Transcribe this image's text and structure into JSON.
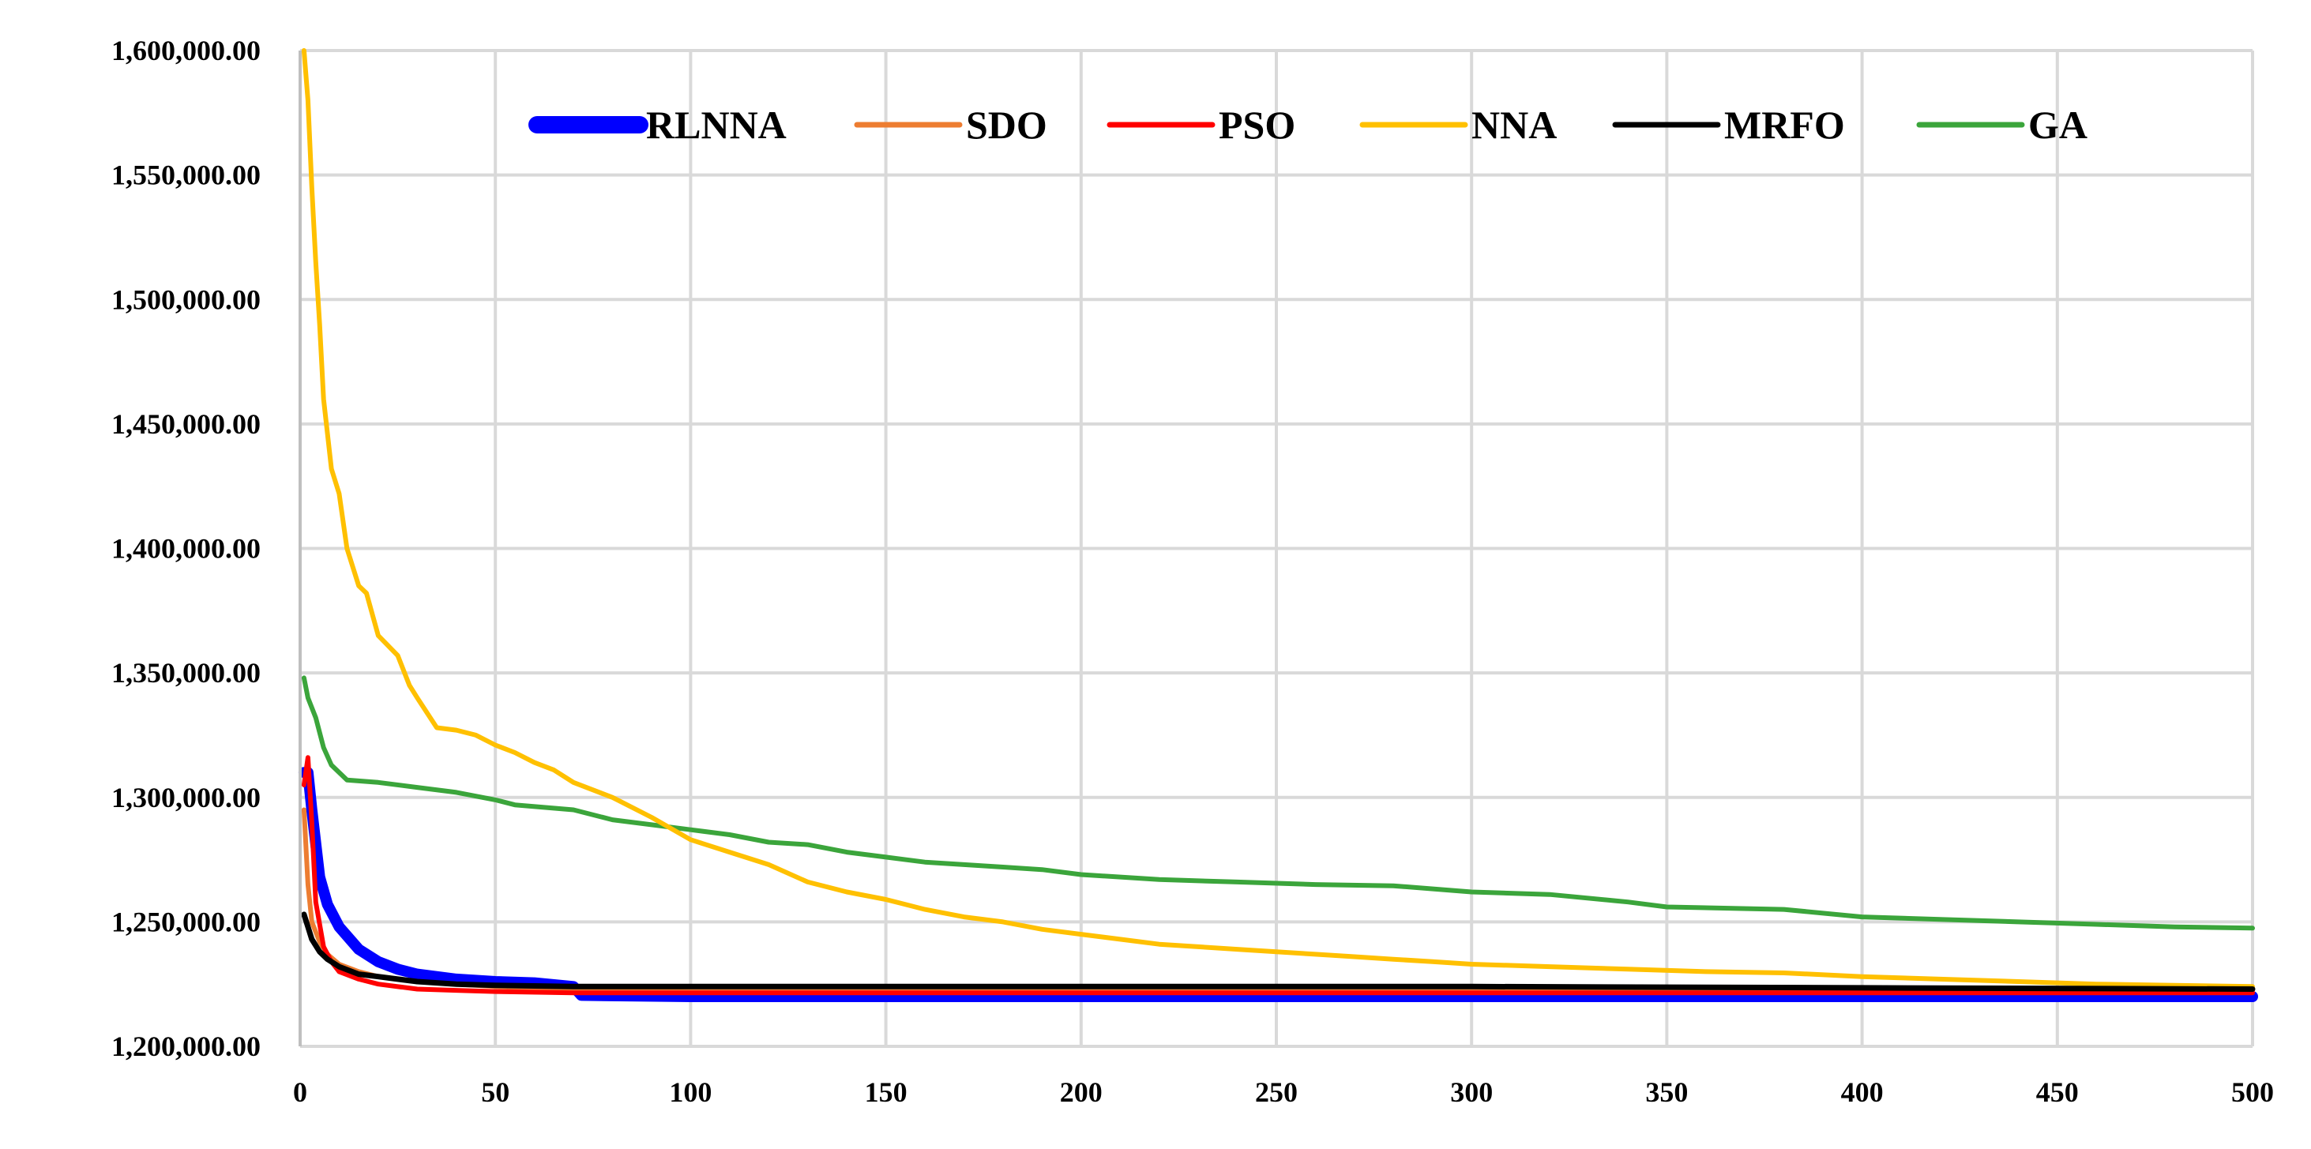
{
  "chart_data": {
    "type": "line",
    "title": "",
    "xlabel": "",
    "ylabel": "",
    "xlim": [
      0,
      500
    ],
    "ylim": [
      1200000,
      1600000
    ],
    "x_ticks": [
      0,
      50,
      100,
      150,
      200,
      250,
      300,
      350,
      400,
      450,
      500
    ],
    "x_tick_labels": [
      "0",
      "50",
      "100",
      "150",
      "200",
      "250",
      "300",
      "350",
      "400",
      "450",
      "500"
    ],
    "y_ticks": [
      1200000,
      1250000,
      1300000,
      1350000,
      1400000,
      1450000,
      1500000,
      1550000,
      1600000
    ],
    "y_tick_labels": [
      "1,200,000.00",
      "1,250,000.00",
      "1,300,000.00",
      "1,350,000.00",
      "1,400,000.00",
      "1,450,000.00",
      "1,500,000.00",
      "1,550,000.00",
      "1,600,000.00"
    ],
    "grid": true,
    "legend_position": "top",
    "series": [
      {
        "name": "RLNNA",
        "color": "#0000ff",
        "points": [
          [
            1,
            1310000
          ],
          [
            2,
            1310000
          ],
          [
            3,
            1295000
          ],
          [
            5,
            1268000
          ],
          [
            7,
            1257000
          ],
          [
            10,
            1248000
          ],
          [
            15,
            1239000
          ],
          [
            20,
            1234000
          ],
          [
            25,
            1231000
          ],
          [
            30,
            1229000
          ],
          [
            40,
            1227000
          ],
          [
            50,
            1226000
          ],
          [
            60,
            1225500
          ],
          [
            70,
            1224000
          ],
          [
            72,
            1220500
          ],
          [
            100,
            1220000
          ],
          [
            200,
            1220000
          ],
          [
            300,
            1220000
          ],
          [
            400,
            1220000
          ],
          [
            500,
            1220000
          ]
        ]
      },
      {
        "name": "SDO",
        "color": "#ed7d31",
        "points": [
          [
            1,
            1295000
          ],
          [
            2,
            1265000
          ],
          [
            3,
            1250000
          ],
          [
            5,
            1242000
          ],
          [
            7,
            1237000
          ],
          [
            10,
            1233000
          ],
          [
            15,
            1230000
          ],
          [
            20,
            1228000
          ],
          [
            30,
            1226000
          ],
          [
            40,
            1225000
          ],
          [
            50,
            1224000
          ],
          [
            70,
            1222500
          ],
          [
            100,
            1222000
          ],
          [
            200,
            1222000
          ],
          [
            300,
            1222000
          ],
          [
            400,
            1222000
          ],
          [
            500,
            1222000
          ]
        ]
      },
      {
        "name": "PSO",
        "color": "#ff0000",
        "points": [
          [
            1,
            1305000
          ],
          [
            2,
            1316000
          ],
          [
            3,
            1290000
          ],
          [
            4,
            1258000
          ],
          [
            6,
            1240000
          ],
          [
            8,
            1234000
          ],
          [
            10,
            1230000
          ],
          [
            15,
            1227000
          ],
          [
            20,
            1225000
          ],
          [
            30,
            1223000
          ],
          [
            40,
            1222500
          ],
          [
            50,
            1222000
          ],
          [
            70,
            1221500
          ],
          [
            100,
            1221500
          ],
          [
            200,
            1221500
          ],
          [
            300,
            1221500
          ],
          [
            400,
            1221500
          ],
          [
            500,
            1221500
          ]
        ]
      },
      {
        "name": "NNA",
        "color": "#ffc000",
        "points": [
          [
            1,
            1600000
          ],
          [
            2,
            1580000
          ],
          [
            3,
            1545000
          ],
          [
            4,
            1515000
          ],
          [
            5,
            1490000
          ],
          [
            6,
            1460000
          ],
          [
            8,
            1432000
          ],
          [
            10,
            1422000
          ],
          [
            12,
            1400000
          ],
          [
            15,
            1385000
          ],
          [
            17,
            1382000
          ],
          [
            20,
            1365000
          ],
          [
            25,
            1357000
          ],
          [
            28,
            1345000
          ],
          [
            30,
            1340000
          ],
          [
            35,
            1328000
          ],
          [
            40,
            1327000
          ],
          [
            45,
            1325000
          ],
          [
            50,
            1321000
          ],
          [
            55,
            1318000
          ],
          [
            60,
            1314000
          ],
          [
            65,
            1311000
          ],
          [
            70,
            1306000
          ],
          [
            80,
            1300000
          ],
          [
            90,
            1292000
          ],
          [
            100,
            1283000
          ],
          [
            110,
            1278000
          ],
          [
            120,
            1273000
          ],
          [
            130,
            1266000
          ],
          [
            140,
            1262000
          ],
          [
            150,
            1259000
          ],
          [
            160,
            1255000
          ],
          [
            170,
            1252000
          ],
          [
            180,
            1250000
          ],
          [
            190,
            1247000
          ],
          [
            200,
            1245000
          ],
          [
            210,
            1243000
          ],
          [
            220,
            1241000
          ],
          [
            230,
            1240000
          ],
          [
            240,
            1239000
          ],
          [
            250,
            1238000
          ],
          [
            260,
            1237000
          ],
          [
            270,
            1236000
          ],
          [
            280,
            1235000
          ],
          [
            290,
            1234000
          ],
          [
            300,
            1233000
          ],
          [
            320,
            1232000
          ],
          [
            340,
            1231000
          ],
          [
            360,
            1230000
          ],
          [
            380,
            1229500
          ],
          [
            400,
            1228000
          ],
          [
            420,
            1227000
          ],
          [
            440,
            1226000
          ],
          [
            460,
            1225000
          ],
          [
            480,
            1224500
          ],
          [
            500,
            1224000
          ]
        ]
      },
      {
        "name": "MRFO",
        "color": "#000000",
        "points": [
          [
            1,
            1253000
          ],
          [
            2,
            1248000
          ],
          [
            3,
            1243000
          ],
          [
            5,
            1238000
          ],
          [
            7,
            1235000
          ],
          [
            10,
            1232000
          ],
          [
            15,
            1229000
          ],
          [
            20,
            1228000
          ],
          [
            25,
            1227000
          ],
          [
            30,
            1226000
          ],
          [
            40,
            1225000
          ],
          [
            50,
            1224500
          ],
          [
            70,
            1224000
          ],
          [
            100,
            1224000
          ],
          [
            200,
            1224000
          ],
          [
            300,
            1224000
          ],
          [
            400,
            1223500
          ],
          [
            500,
            1223000
          ]
        ]
      },
      {
        "name": "GA",
        "color": "#3ba53b",
        "points": [
          [
            1,
            1348000
          ],
          [
            2,
            1340000
          ],
          [
            4,
            1332000
          ],
          [
            6,
            1320000
          ],
          [
            8,
            1313000
          ],
          [
            10,
            1310000
          ],
          [
            12,
            1307000
          ],
          [
            20,
            1306000
          ],
          [
            30,
            1304000
          ],
          [
            40,
            1302000
          ],
          [
            50,
            1299000
          ],
          [
            55,
            1297000
          ],
          [
            70,
            1295000
          ],
          [
            80,
            1291000
          ],
          [
            90,
            1289000
          ],
          [
            100,
            1287000
          ],
          [
            110,
            1285000
          ],
          [
            120,
            1282000
          ],
          [
            130,
            1281000
          ],
          [
            140,
            1278000
          ],
          [
            150,
            1276000
          ],
          [
            160,
            1274000
          ],
          [
            170,
            1273000
          ],
          [
            180,
            1272000
          ],
          [
            190,
            1271000
          ],
          [
            200,
            1269000
          ],
          [
            220,
            1267000
          ],
          [
            240,
            1266000
          ],
          [
            260,
            1265000
          ],
          [
            280,
            1264500
          ],
          [
            300,
            1262000
          ],
          [
            320,
            1261000
          ],
          [
            340,
            1258000
          ],
          [
            350,
            1256000
          ],
          [
            380,
            1255000
          ],
          [
            400,
            1252000
          ],
          [
            420,
            1251000
          ],
          [
            440,
            1250000
          ],
          [
            460,
            1249000
          ],
          [
            480,
            1248000
          ],
          [
            500,
            1247500
          ]
        ]
      }
    ]
  }
}
